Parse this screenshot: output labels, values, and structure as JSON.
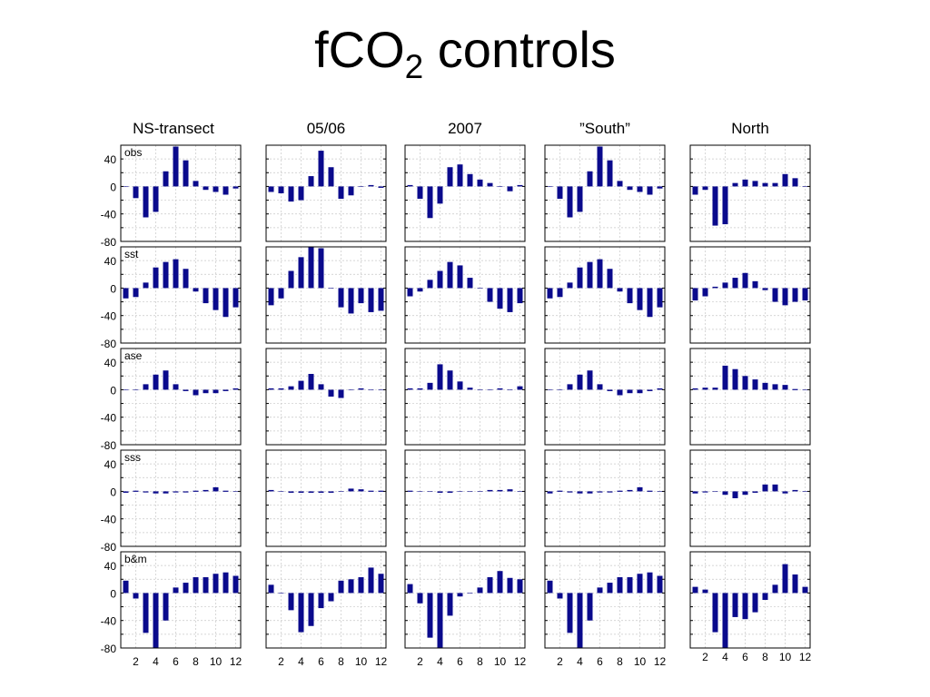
{
  "slide": {
    "title_main": "fCO",
    "title_sub": "2",
    "title_rest": " controls"
  },
  "colors": {
    "bar": "#0a0a8c",
    "grid": "#c8c8c8",
    "frame": "#000000"
  },
  "chart_data": {
    "type": "bar",
    "x": [
      1,
      2,
      3,
      4,
      5,
      6,
      7,
      8,
      9,
      10,
      11,
      12
    ],
    "x_tick_labels": [
      "2",
      "4",
      "6",
      "8",
      "10",
      "12"
    ],
    "ylim": [
      -80,
      60
    ],
    "y_tick_labels": [
      "40",
      "0",
      "-40",
      "-80"
    ],
    "grid": true,
    "columns": [
      "NS-transect",
      "05/06",
      "2007",
      "”South”",
      "North"
    ],
    "rows": [
      "obs",
      "sst",
      "ase",
      "sss",
      "b&m"
    ],
    "panels": [
      [
        {
          "col": "NS-transect",
          "row": "obs",
          "values": [
            0,
            -17,
            -45,
            -37,
            22,
            58,
            38,
            8,
            -5,
            -8,
            -12,
            -3
          ]
        },
        {
          "col": "05/06",
          "row": "obs",
          "values": [
            -8,
            -10,
            -22,
            -20,
            15,
            52,
            28,
            -18,
            -13,
            0,
            2,
            -2
          ]
        },
        {
          "col": "2007",
          "row": "obs",
          "values": [
            2,
            -18,
            -46,
            -25,
            28,
            32,
            18,
            10,
            5,
            0,
            -7,
            2
          ]
        },
        {
          "col": "”South”",
          "row": "obs",
          "values": [
            0,
            -18,
            -45,
            -37,
            22,
            58,
            38,
            8,
            -5,
            -8,
            -12,
            -3
          ]
        },
        {
          "col": "North",
          "row": "obs",
          "values": [
            -12,
            -5,
            -57,
            -55,
            5,
            10,
            8,
            5,
            5,
            18,
            12,
            0
          ]
        }
      ],
      [
        {
          "col": "NS-transect",
          "row": "sst",
          "values": [
            -15,
            -13,
            8,
            30,
            38,
            42,
            28,
            -5,
            -22,
            -32,
            -42,
            -28
          ]
        },
        {
          "col": "05/06",
          "row": "sst",
          "values": [
            -25,
            -15,
            25,
            45,
            60,
            58,
            0,
            -28,
            -37,
            -22,
            -35,
            -33
          ]
        },
        {
          "col": "2007",
          "row": "sst",
          "values": [
            -12,
            -5,
            12,
            25,
            38,
            33,
            15,
            0,
            -20,
            -30,
            -35,
            -22
          ]
        },
        {
          "col": "”South”",
          "row": "sst",
          "values": [
            -15,
            -13,
            8,
            30,
            38,
            42,
            28,
            -5,
            -22,
            -32,
            -42,
            -28
          ]
        },
        {
          "col": "North",
          "row": "sst",
          "values": [
            -18,
            -12,
            2,
            8,
            15,
            22,
            10,
            -3,
            -20,
            -25,
            -20,
            -18
          ]
        }
      ],
      [
        {
          "col": "NS-transect",
          "row": "ase",
          "values": [
            0,
            0,
            8,
            22,
            28,
            8,
            -2,
            -8,
            -5,
            -5,
            -2,
            2
          ]
        },
        {
          "col": "05/06",
          "row": "ase",
          "values": [
            2,
            2,
            5,
            13,
            23,
            8,
            -10,
            -12,
            0,
            2,
            0,
            0
          ]
        },
        {
          "col": "2007",
          "row": "ase",
          "values": [
            2,
            2,
            10,
            37,
            28,
            12,
            3,
            0,
            0,
            2,
            0,
            5
          ]
        },
        {
          "col": "”South”",
          "row": "ase",
          "values": [
            0,
            0,
            8,
            22,
            28,
            8,
            -2,
            -8,
            -5,
            -5,
            -2,
            2
          ]
        },
        {
          "col": "North",
          "row": "ase",
          "values": [
            2,
            3,
            3,
            35,
            30,
            20,
            15,
            10,
            8,
            7,
            1,
            0
          ]
        }
      ],
      [
        {
          "col": "NS-transect",
          "row": "sss",
          "values": [
            -2,
            1,
            -1,
            -3,
            -3,
            -1,
            -1,
            1,
            2,
            6,
            1,
            0
          ]
        },
        {
          "col": "05/06",
          "row": "sss",
          "values": [
            2,
            0,
            -2,
            -2,
            -2,
            -2,
            -2,
            0,
            4,
            3,
            1,
            1
          ]
        },
        {
          "col": "2007",
          "row": "sss",
          "values": [
            1,
            0,
            0,
            -2,
            -2,
            0,
            0,
            0,
            2,
            2,
            3,
            0
          ]
        },
        {
          "col": "”South”",
          "row": "sss",
          "values": [
            -3,
            1,
            -1,
            -3,
            -3,
            -1,
            -1,
            1,
            2,
            6,
            1,
            0
          ]
        },
        {
          "col": "North",
          "row": "sss",
          "values": [
            -3,
            -1,
            0,
            -5,
            -10,
            -5,
            -2,
            10,
            10,
            -3,
            2,
            0
          ]
        }
      ],
      [
        {
          "col": "NS-transect",
          "row": "b&m",
          "values": [
            18,
            -8,
            -58,
            -80,
            -40,
            8,
            15,
            23,
            23,
            28,
            30,
            25
          ]
        },
        {
          "col": "05/06",
          "row": "b&m",
          "values": [
            12,
            0,
            -25,
            -57,
            -48,
            -22,
            -12,
            18,
            20,
            23,
            37,
            28
          ]
        },
        {
          "col": "2007",
          "row": "b&m",
          "values": [
            13,
            -15,
            -65,
            -80,
            -33,
            -5,
            0,
            8,
            23,
            32,
            22,
            20
          ]
        },
        {
          "col": "”South”",
          "row": "b&m",
          "values": [
            18,
            -8,
            -58,
            -80,
            -40,
            8,
            15,
            23,
            23,
            28,
            30,
            25
          ]
        },
        {
          "col": "North",
          "row": "b&m",
          "values": [
            9,
            5,
            -57,
            -80,
            -35,
            -38,
            -28,
            -10,
            12,
            42,
            27,
            9
          ]
        }
      ]
    ]
  }
}
